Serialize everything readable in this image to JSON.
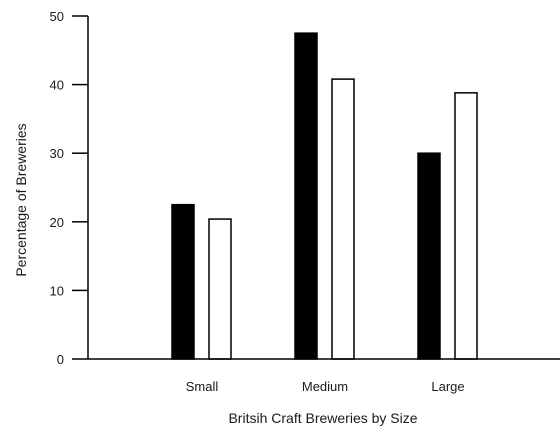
{
  "chart_data": {
    "type": "bar",
    "title": "",
    "xlabel": "Britsih Craft Breweries by Size",
    "ylabel": "Percentage of Breweries",
    "categories": [
      "Small",
      "Medium",
      "Large"
    ],
    "series": [
      {
        "values": [
          22.5,
          47.5,
          30.0
        ],
        "color": "#000000"
      },
      {
        "values": [
          20.4,
          40.8,
          38.8
        ],
        "color": "#ffffff"
      }
    ],
    "ylim": [
      0,
      50
    ],
    "yticks": [
      "0",
      "10",
      "20",
      "30",
      "40",
      "50"
    ],
    "grid": false,
    "legend": "none"
  }
}
